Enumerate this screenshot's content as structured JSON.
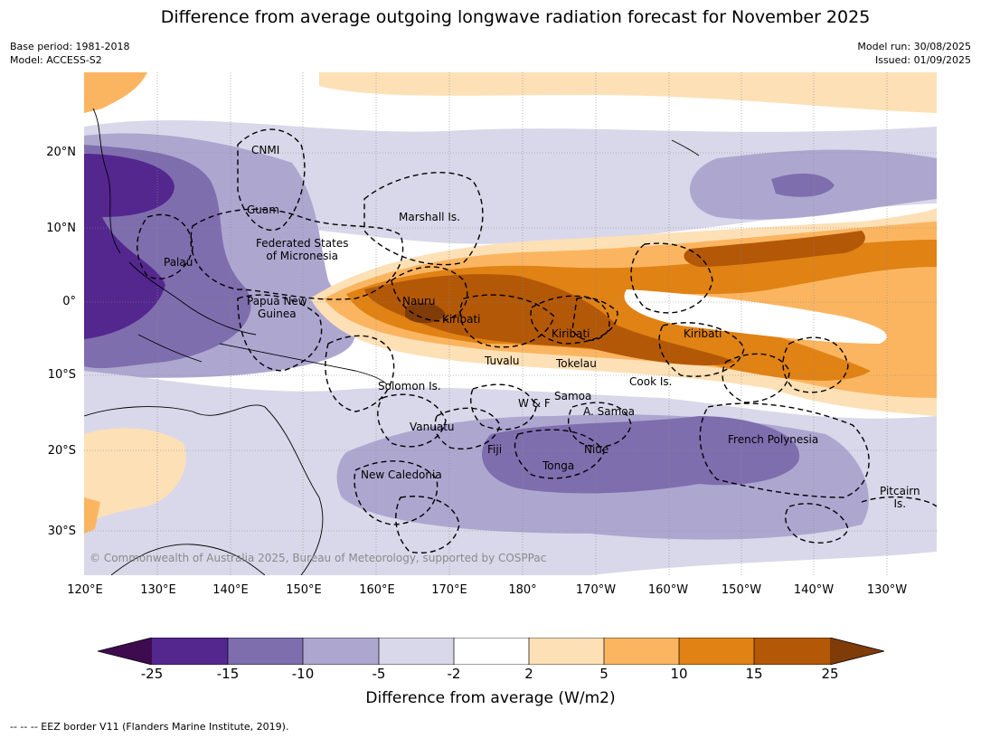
{
  "title": "Difference from average outgoing longwave radiation forecast for November 2025",
  "meta": {
    "base_period": "Base period: 1981-2018",
    "model": "Model: ACCESS-S2",
    "model_run": "Model run: 30/08/2025",
    "issued": "Issued: 01/09/2025"
  },
  "map": {
    "lon_ticks": [
      "120°E",
      "130°E",
      "140°E",
      "150°E",
      "160°E",
      "170°E",
      "180°",
      "170°W",
      "160°W",
      "150°W",
      "140°W",
      "130°W"
    ],
    "lat_ticks": [
      "20°N",
      "10°N",
      "0°",
      "10°S",
      "20°S",
      "30°S"
    ],
    "regions": [
      {
        "name": "CNMI"
      },
      {
        "name": "Guam"
      },
      {
        "name": "Marshall Is."
      },
      {
        "name": "Federated States\nof Micronesia"
      },
      {
        "name": "Palau"
      },
      {
        "name": "Nauru"
      },
      {
        "name": "Papua New\nGuinea"
      },
      {
        "name": "Kiribati"
      },
      {
        "name": "Kiribati"
      },
      {
        "name": "Kiribati"
      },
      {
        "name": "Tuvalu"
      },
      {
        "name": "Tokelau"
      },
      {
        "name": "Cook Is."
      },
      {
        "name": "Solomon Is."
      },
      {
        "name": "Samoa"
      },
      {
        "name": "W & F"
      },
      {
        "name": "A. Samoa"
      },
      {
        "name": "Vanuatu"
      },
      {
        "name": "Fiji"
      },
      {
        "name": "Niue"
      },
      {
        "name": "Tonga"
      },
      {
        "name": "French Polynesia"
      },
      {
        "name": "New Caledonia"
      },
      {
        "name": "Pitcairn\nIs."
      }
    ],
    "copyright": "© Commonwealth of Australia 2025, Bureau of Meteorology, supported by COSPPac"
  },
  "colorbar": {
    "ticks": [
      "-25",
      "-15",
      "-10",
      "-5",
      "-2",
      "2",
      "5",
      "10",
      "15",
      "25"
    ],
    "colors": [
      "#3f0b4f",
      "#54278f",
      "#7f6eae",
      "#ada7d0",
      "#d9d8ea",
      "#ffffff",
      "#fde0b6",
      "#fbb561",
      "#e08214",
      "#b35806",
      "#7f3b08"
    ],
    "label": "Difference from average (W/m2)"
  },
  "legend": "-- -- -- EEZ border V11 (Flanders Marine Institute, 2019)."
}
